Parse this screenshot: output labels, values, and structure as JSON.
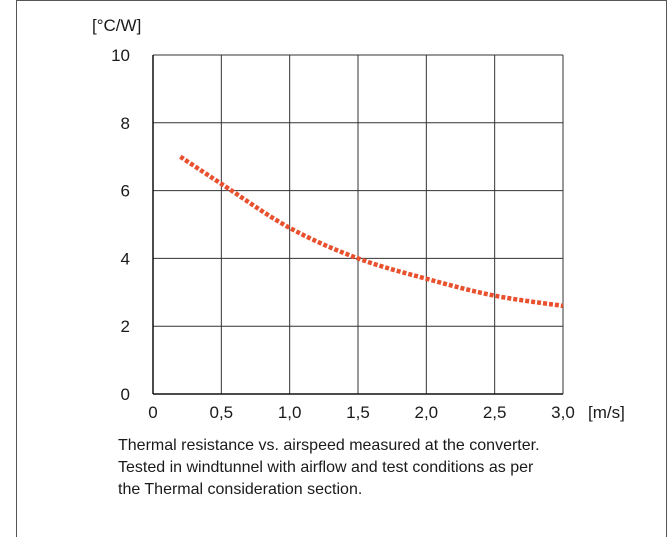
{
  "chart_data": {
    "type": "line",
    "ylabel": "[°C/W]",
    "xlabel": "[m/s]",
    "xlim": [
      0,
      3.0
    ],
    "ylim": [
      0,
      10
    ],
    "grid": true,
    "x_ticks": [
      {
        "value": 0,
        "label": "0"
      },
      {
        "value": 0.5,
        "label": "0,5"
      },
      {
        "value": 1.0,
        "label": "1,0"
      },
      {
        "value": 1.5,
        "label": "1,5"
      },
      {
        "value": 2.0,
        "label": "2,0"
      },
      {
        "value": 2.5,
        "label": "2,5"
      },
      {
        "value": 3.0,
        "label": "3,0"
      }
    ],
    "y_ticks": [
      {
        "value": 0,
        "label": "0"
      },
      {
        "value": 2,
        "label": "2"
      },
      {
        "value": 4,
        "label": "4"
      },
      {
        "value": 6,
        "label": "6"
      },
      {
        "value": 8,
        "label": "8"
      },
      {
        "value": 10,
        "label": "10"
      }
    ],
    "series": [
      {
        "color": "#e8502e",
        "style": "dashed",
        "x": [
          0.2,
          0.5,
          1.0,
          1.5,
          2.0,
          2.5,
          3.0
        ],
        "y": [
          7.0,
          6.2,
          4.9,
          4.0,
          3.4,
          2.9,
          2.6
        ]
      }
    ]
  },
  "caption": {
    "line1": "Thermal resistance vs. airspeed measured at the converter.",
    "line2": "Tested in windtunnel with airflow and test conditions as per",
    "line3": "the Thermal consideration section."
  }
}
